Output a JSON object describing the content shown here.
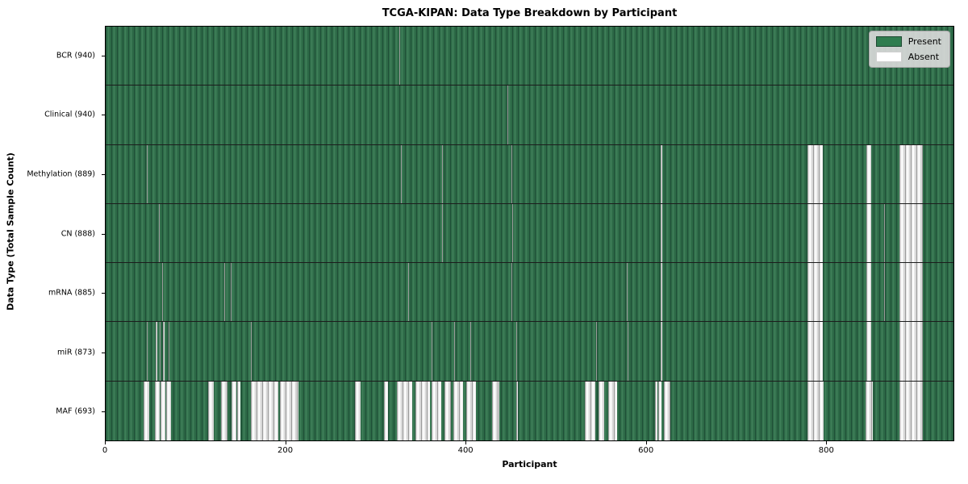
{
  "title": "TCGA-KIPAN: Data Type Breakdown by Participant",
  "xlabel": "Participant",
  "ylabel": "Data Type (Total Sample Count)",
  "legend": {
    "present_label": "Present",
    "absent_label": "Absent"
  },
  "colors": {
    "present_green": "#2d6a47",
    "present_edge_green": "#1f4f37",
    "absent_white": "#ffffff",
    "absent_edge_gray": "#9a9a9a",
    "legend_background": "#dcdcdc"
  },
  "chart_data": {
    "type": "heatmap",
    "title": "TCGA-KIPAN: Data Type Breakdown by Participant",
    "xlabel": "Participant",
    "ylabel": "Data Type (Total Sample Count)",
    "legend_entries": [
      "Present",
      "Absent"
    ],
    "legend_position": "upper right",
    "grid": false,
    "x_domain": [
      0,
      942
    ],
    "x_tick_values": [
      0,
      200,
      400,
      600,
      800
    ],
    "x_tick_labels": [
      "0",
      "200",
      "400",
      "600",
      "800"
    ],
    "rows": [
      {
        "data_type": "BCR",
        "label": "BCR (940)",
        "sample_count": 940,
        "absent_ranges": [
          [
            326,
            327
          ]
        ]
      },
      {
        "data_type": "Clinical",
        "label": "Clinical (940)",
        "sample_count": 940,
        "absent_ranges": [
          [
            446,
            447
          ]
        ]
      },
      {
        "data_type": "Methylation",
        "label": "Methylation (889)",
        "sample_count": 889,
        "absent_ranges": [
          [
            46,
            47
          ],
          [
            328,
            329
          ],
          [
            374,
            375
          ],
          [
            451,
            452
          ],
          [
            617,
            618
          ],
          [
            780,
            797
          ],
          [
            845,
            851
          ],
          [
            882,
            908
          ]
        ]
      },
      {
        "data_type": "CN",
        "label": "CN (888)",
        "sample_count": 888,
        "absent_ranges": [
          [
            59,
            60
          ],
          [
            374,
            375
          ],
          [
            452,
            453
          ],
          [
            617,
            618
          ],
          [
            780,
            797
          ],
          [
            845,
            851
          ],
          [
            865,
            866
          ],
          [
            882,
            908
          ]
        ]
      },
      {
        "data_type": "mRNA",
        "label": "mRNA (885)",
        "sample_count": 885,
        "absent_ranges": [
          [
            63,
            64
          ],
          [
            132,
            133
          ],
          [
            139,
            140
          ],
          [
            336,
            337
          ],
          [
            451,
            452
          ],
          [
            579,
            580
          ],
          [
            617,
            618
          ],
          [
            780,
            797
          ],
          [
            845,
            851
          ],
          [
            865,
            866
          ],
          [
            882,
            908
          ]
        ]
      },
      {
        "data_type": "miR",
        "label": "miR (873)",
        "sample_count": 873,
        "absent_ranges": [
          [
            46,
            47
          ],
          [
            56,
            57
          ],
          [
            60,
            61
          ],
          [
            64,
            65
          ],
          [
            70,
            71
          ],
          [
            161,
            162
          ],
          [
            362,
            363
          ],
          [
            387,
            388
          ],
          [
            405,
            406
          ],
          [
            456,
            457
          ],
          [
            545,
            546
          ],
          [
            580,
            581
          ],
          [
            617,
            618
          ],
          [
            780,
            797
          ],
          [
            845,
            851
          ],
          [
            882,
            908
          ]
        ]
      },
      {
        "data_type": "MAF",
        "label": "MAF (693)",
        "sample_count": 693,
        "absent_ranges": [
          [
            42,
            48
          ],
          [
            55,
            60
          ],
          [
            61,
            66
          ],
          [
            67,
            73
          ],
          [
            114,
            120
          ],
          [
            128,
            135
          ],
          [
            140,
            145
          ],
          [
            146,
            150
          ],
          [
            161,
            192
          ],
          [
            194,
            214
          ],
          [
            277,
            283
          ],
          [
            309,
            314
          ],
          [
            324,
            341
          ],
          [
            344,
            360
          ],
          [
            362,
            373
          ],
          [
            376,
            384
          ],
          [
            386,
            397
          ],
          [
            401,
            411
          ],
          [
            429,
            437
          ],
          [
            456,
            458
          ],
          [
            532,
            544
          ],
          [
            548,
            554
          ],
          [
            558,
            568
          ],
          [
            610,
            613
          ],
          [
            614,
            618
          ],
          [
            620,
            627
          ],
          [
            780,
            798
          ],
          [
            844,
            852
          ],
          [
            882,
            908
          ]
        ]
      }
    ]
  }
}
